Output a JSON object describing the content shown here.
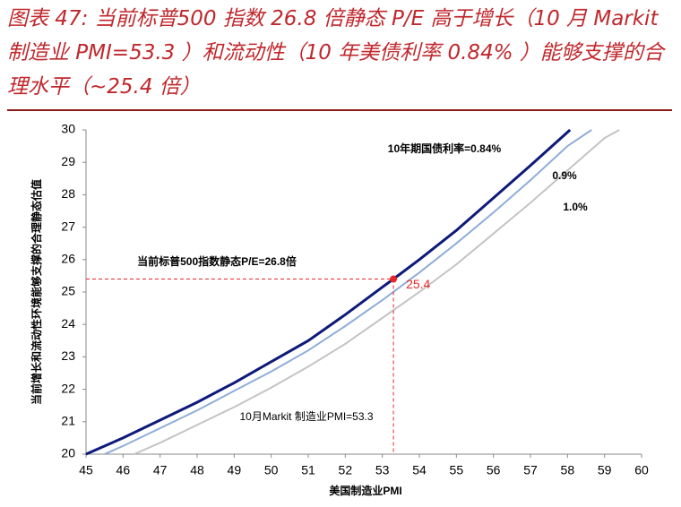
{
  "title": "图表 47: 当前标普500 指数 26.8 倍静态 P/E 高于增长（10 月 Markit 制造业 PMI=53.3 ）和流动性（10 年美债利率 0.84% ）能够支撑的合理水平（~25.4 倍）",
  "chart_data": {
    "type": "line",
    "x_label": "美国制造业PMI",
    "y_label": "当前增长和流动性环境能够支撑的合理静态估值",
    "xlim": [
      45,
      60
    ],
    "ylim": [
      20,
      30
    ],
    "xticks": [
      45,
      46,
      47,
      48,
      49,
      50,
      51,
      52,
      53,
      54,
      55,
      56,
      57,
      58,
      59,
      60
    ],
    "yticks": [
      20,
      21,
      22,
      23,
      24,
      25,
      26,
      27,
      28,
      29,
      30
    ],
    "series": [
      {
        "name": "10年期国债利率=0.84%",
        "color": "#0d1a7a",
        "x": [
          45,
          46,
          47,
          48,
          49,
          50,
          51,
          52,
          53,
          53.3,
          54,
          55,
          56,
          57,
          58.07
        ],
        "values": [
          20,
          20.5,
          21.05,
          21.6,
          22.2,
          22.85,
          23.5,
          24.3,
          25.15,
          25.4,
          26.0,
          26.9,
          27.9,
          28.9,
          30
        ]
      },
      {
        "name": "0.9%",
        "color": "#8fadd9",
        "x": [
          45.5,
          46,
          47,
          48,
          49,
          50,
          51,
          52,
          53,
          54,
          55,
          56,
          57,
          58,
          58.65
        ],
        "values": [
          20,
          20.25,
          20.8,
          21.35,
          21.95,
          22.55,
          23.2,
          23.95,
          24.75,
          25.6,
          26.5,
          27.45,
          28.45,
          29.5,
          30
        ]
      },
      {
        "name": "1.0%",
        "color": "#c4c4c4",
        "x": [
          46.3,
          47,
          48,
          49,
          50,
          51,
          52,
          53,
          54,
          55,
          56,
          57,
          58,
          59,
          59.4
        ],
        "values": [
          20,
          20.35,
          20.9,
          21.45,
          22.05,
          22.7,
          23.4,
          24.2,
          25.0,
          25.85,
          26.8,
          27.75,
          28.75,
          29.75,
          30
        ]
      }
    ],
    "marker": {
      "x": 53.3,
      "y": 25.4,
      "color": "#e8262a"
    },
    "annotations": [
      "当前标普500指数静态P/E=26.8倍",
      "10月Markit 制造业PMI=53.3"
    ]
  }
}
